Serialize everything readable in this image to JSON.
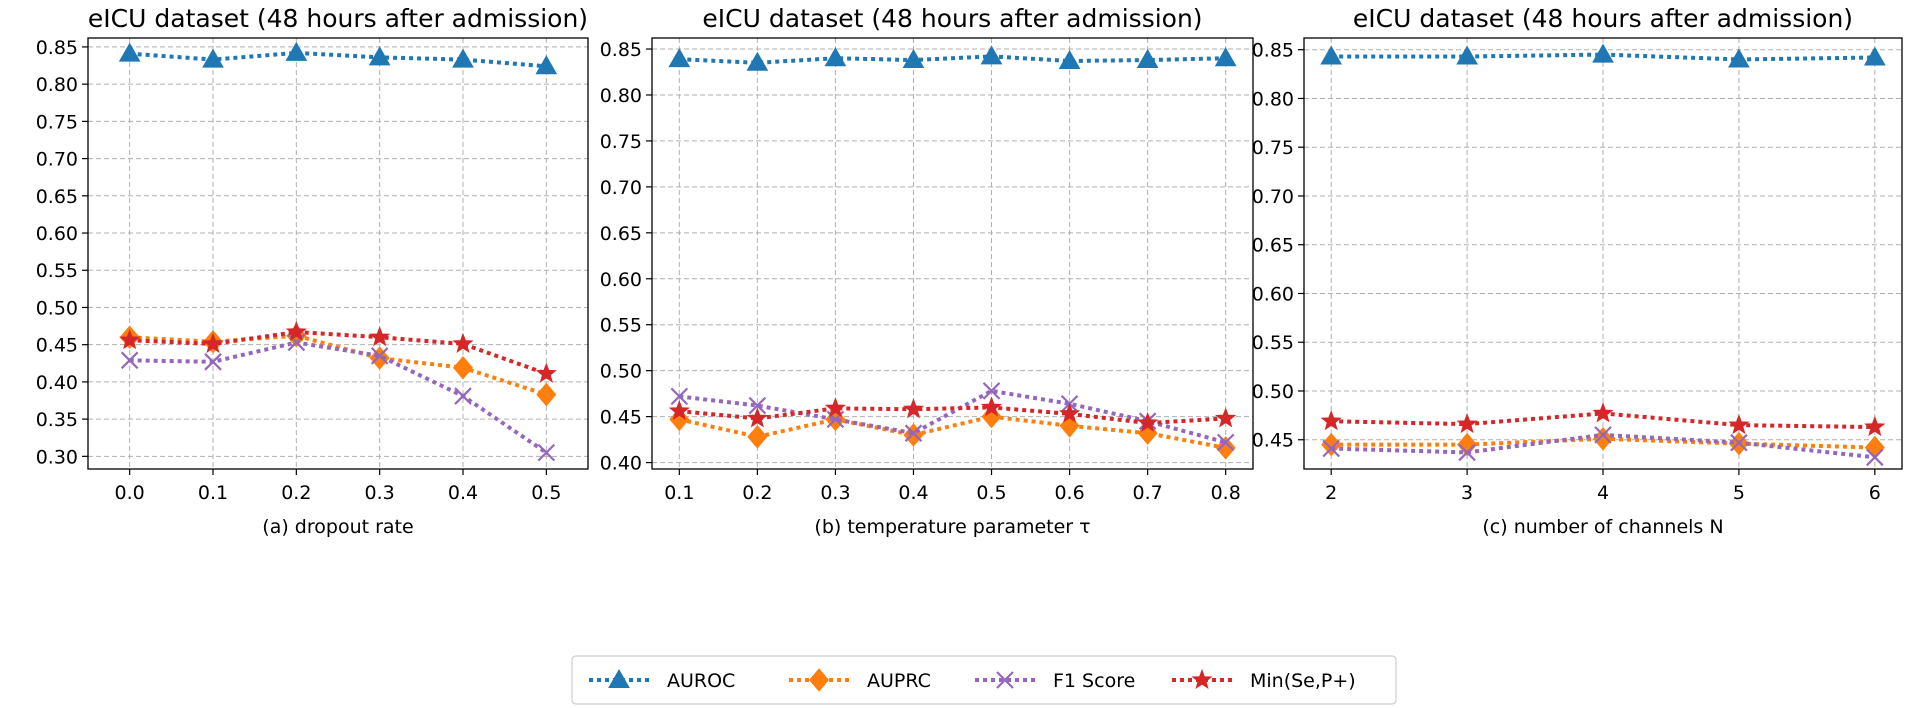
{
  "colors": {
    "AUROC": "#1f77b4",
    "AUPRC": "#ff7f0e",
    "F1 Score": "#9467bd",
    "Min(Se,P+)": "#d62728",
    "grid": "#b0b0b0"
  },
  "legend": {
    "position": "bottom-center",
    "items": [
      {
        "name": "AUROC",
        "marker": "triangle"
      },
      {
        "name": "AUPRC",
        "marker": "diamond"
      },
      {
        "name": "F1 Score",
        "marker": "x"
      },
      {
        "name": "Min(Se,P+)",
        "marker": "star"
      }
    ]
  },
  "chart_data": [
    {
      "type": "line",
      "title": "eICU dataset (48 hours after admission)",
      "xlabel": "(a) dropout rate",
      "ylabel": "",
      "grid": true,
      "x": [
        0.0,
        0.1,
        0.2,
        0.3,
        0.4,
        0.5
      ],
      "xtick_labels": [
        "0.0",
        "0.1",
        "0.2",
        "0.3",
        "0.4",
        "0.5"
      ],
      "xlim": [
        -0.05,
        0.55
      ],
      "ylim": [
        0.283,
        0.862
      ],
      "yticks": [
        "0.30",
        "0.35",
        "0.40",
        "0.45",
        "0.50",
        "0.55",
        "0.60",
        "0.65",
        "0.70",
        "0.75",
        "0.80",
        "0.85"
      ],
      "series": [
        {
          "name": "AUROC",
          "values": [
            0.841,
            0.833,
            0.842,
            0.836,
            0.833,
            0.824
          ]
        },
        {
          "name": "AUPRC",
          "values": [
            0.46,
            0.454,
            0.462,
            0.432,
            0.419,
            0.383
          ]
        },
        {
          "name": "F1 Score",
          "values": [
            0.429,
            0.427,
            0.453,
            0.435,
            0.381,
            0.305
          ]
        },
        {
          "name": "Min(Se,P+)",
          "values": [
            0.456,
            0.451,
            0.467,
            0.46,
            0.451,
            0.411
          ]
        }
      ]
    },
    {
      "type": "line",
      "title": "eICU dataset (48 hours after admission)",
      "xlabel": "(b) temperature parameter τ",
      "ylabel": "",
      "grid": true,
      "x": [
        0.1,
        0.2,
        0.3,
        0.4,
        0.5,
        0.6,
        0.7,
        0.8
      ],
      "xtick_labels": [
        "0.1",
        "0.2",
        "0.3",
        "0.4",
        "0.5",
        "0.6",
        "0.7",
        "0.8"
      ],
      "xlim": [
        0.065,
        0.835
      ],
      "ylim": [
        0.393,
        0.862
      ],
      "yticks": [
        "0.40",
        "0.45",
        "0.50",
        "0.55",
        "0.60",
        "0.65",
        "0.70",
        "0.75",
        "0.80",
        "0.85"
      ],
      "series": [
        {
          "name": "AUROC",
          "values": [
            0.839,
            0.835,
            0.84,
            0.838,
            0.842,
            0.837,
            0.838,
            0.84
          ]
        },
        {
          "name": "AUPRC",
          "values": [
            0.447,
            0.428,
            0.447,
            0.43,
            0.45,
            0.44,
            0.432,
            0.416
          ]
        },
        {
          "name": "F1 Score",
          "values": [
            0.472,
            0.462,
            0.447,
            0.432,
            0.478,
            0.464,
            0.445,
            0.422
          ]
        },
        {
          "name": "Min(Se,P+)",
          "values": [
            0.456,
            0.448,
            0.459,
            0.458,
            0.46,
            0.453,
            0.443,
            0.448
          ]
        }
      ]
    },
    {
      "type": "line",
      "title": "eICU dataset (48 hours after admission)",
      "xlabel": "(c) number of channels N",
      "ylabel": "",
      "grid": true,
      "x": [
        2,
        3,
        4,
        5,
        6
      ],
      "xtick_labels": [
        "2",
        "3",
        "4",
        "5",
        "6"
      ],
      "xlim": [
        1.8,
        6.2
      ],
      "ylim": [
        0.42,
        0.862
      ],
      "yticks": [
        "0.45",
        "0.50",
        "0.55",
        "0.60",
        "0.65",
        "0.70",
        "0.75",
        "0.80",
        "0.85"
      ],
      "series": [
        {
          "name": "AUROC",
          "values": [
            0.843,
            0.843,
            0.845,
            0.84,
            0.842
          ]
        },
        {
          "name": "AUPRC",
          "values": [
            0.445,
            0.445,
            0.451,
            0.446,
            0.442
          ]
        },
        {
          "name": "F1 Score",
          "values": [
            0.441,
            0.437,
            0.455,
            0.447,
            0.432
          ]
        },
        {
          "name": "Min(Se,P+)",
          "values": [
            0.469,
            0.466,
            0.477,
            0.465,
            0.463
          ]
        }
      ]
    }
  ]
}
